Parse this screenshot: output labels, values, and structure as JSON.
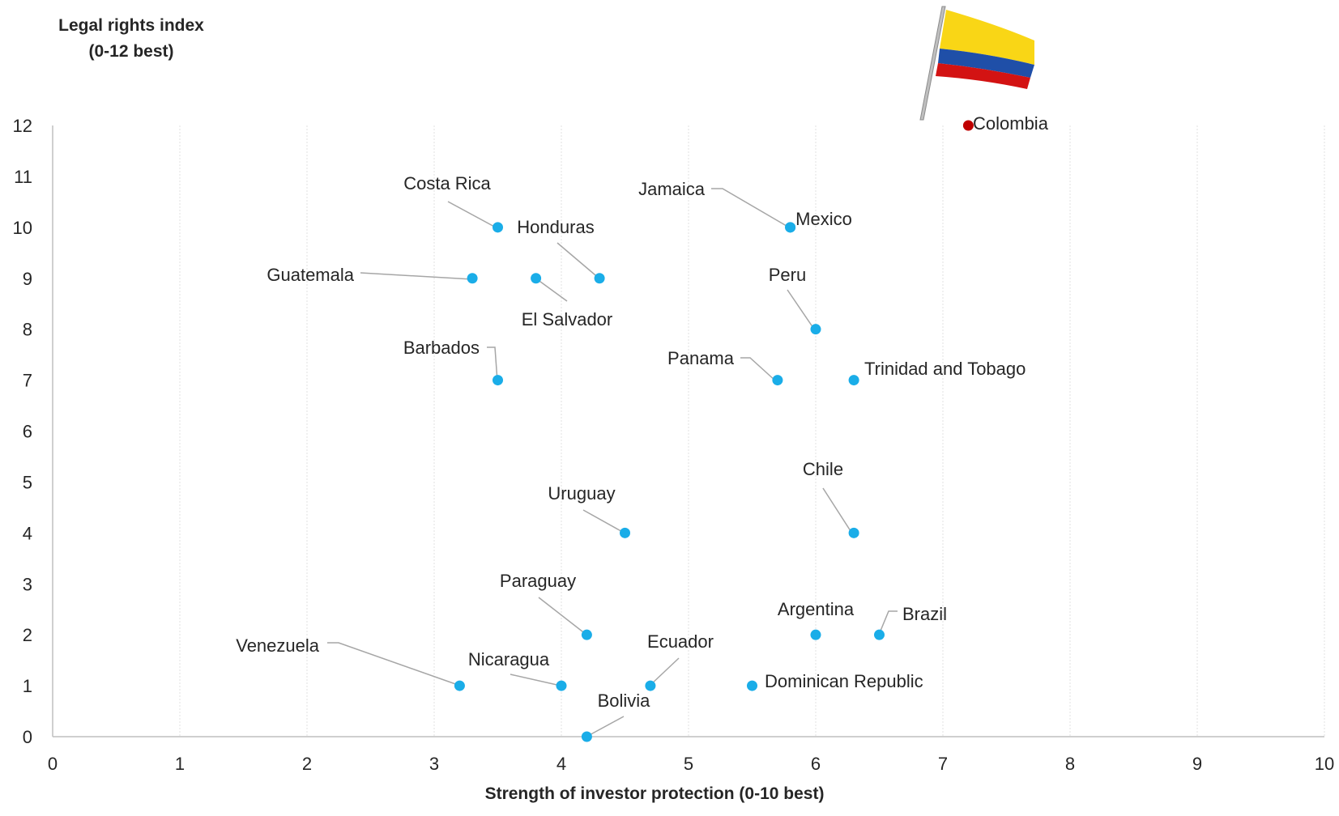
{
  "chart_data": {
    "type": "scatter",
    "title": "",
    "xlabel": "Strength of investor protection (0-10 best)",
    "ylabel_lines": [
      "Legal rights index",
      "(0-12 best)"
    ],
    "xlim": [
      0,
      10
    ],
    "ylim": [
      0,
      12
    ],
    "x_ticks": [
      "0",
      "1",
      "2",
      "3",
      "4",
      "5",
      "6",
      "7",
      "8",
      "9",
      "10"
    ],
    "y_ticks": [
      "0",
      "1",
      "2",
      "3",
      "4",
      "5",
      "6",
      "7",
      "8",
      "9",
      "10",
      "11",
      "12"
    ],
    "grid": "vertical",
    "legend": "none",
    "colors": {
      "point": "#1AADE8",
      "highlight": "#C00000",
      "leader": "#A6A6A6",
      "grid": "#E0E0E0"
    },
    "highlight_icon": "colombia-flag-icon",
    "points": [
      {
        "label": "Colombia",
        "x": 7.2,
        "y": 12,
        "highlight": true
      },
      {
        "label": "Costa Rica",
        "x": 3.5,
        "y": 10
      },
      {
        "label": "Mexico",
        "x": 5.8,
        "y": 10
      },
      {
        "label": "Jamaica",
        "x": 5.8,
        "y": 10
      },
      {
        "label": "Guatemala",
        "x": 3.3,
        "y": 9
      },
      {
        "label": "El Salvador",
        "x": 3.8,
        "y": 9
      },
      {
        "label": "Honduras",
        "x": 4.3,
        "y": 9
      },
      {
        "label": "Peru",
        "x": 6.0,
        "y": 8
      },
      {
        "label": "Barbados",
        "x": 3.5,
        "y": 7
      },
      {
        "label": "Panama",
        "x": 5.7,
        "y": 7
      },
      {
        "label": "Trinidad and Tobago",
        "x": 6.3,
        "y": 7
      },
      {
        "label": "Uruguay",
        "x": 4.5,
        "y": 4
      },
      {
        "label": "Chile",
        "x": 6.3,
        "y": 4
      },
      {
        "label": "Paraguay",
        "x": 4.2,
        "y": 2
      },
      {
        "label": "Argentina",
        "x": 6.0,
        "y": 2
      },
      {
        "label": "Brazil",
        "x": 6.5,
        "y": 2
      },
      {
        "label": "Venezuela",
        "x": 3.2,
        "y": 1
      },
      {
        "label": "Nicaragua",
        "x": 4.0,
        "y": 1
      },
      {
        "label": "Ecuador",
        "x": 4.7,
        "y": 1
      },
      {
        "label": "Dominican Republic",
        "x": 5.5,
        "y": 1
      },
      {
        "label": "Bolivia",
        "x": 4.2,
        "y": 0
      }
    ]
  }
}
